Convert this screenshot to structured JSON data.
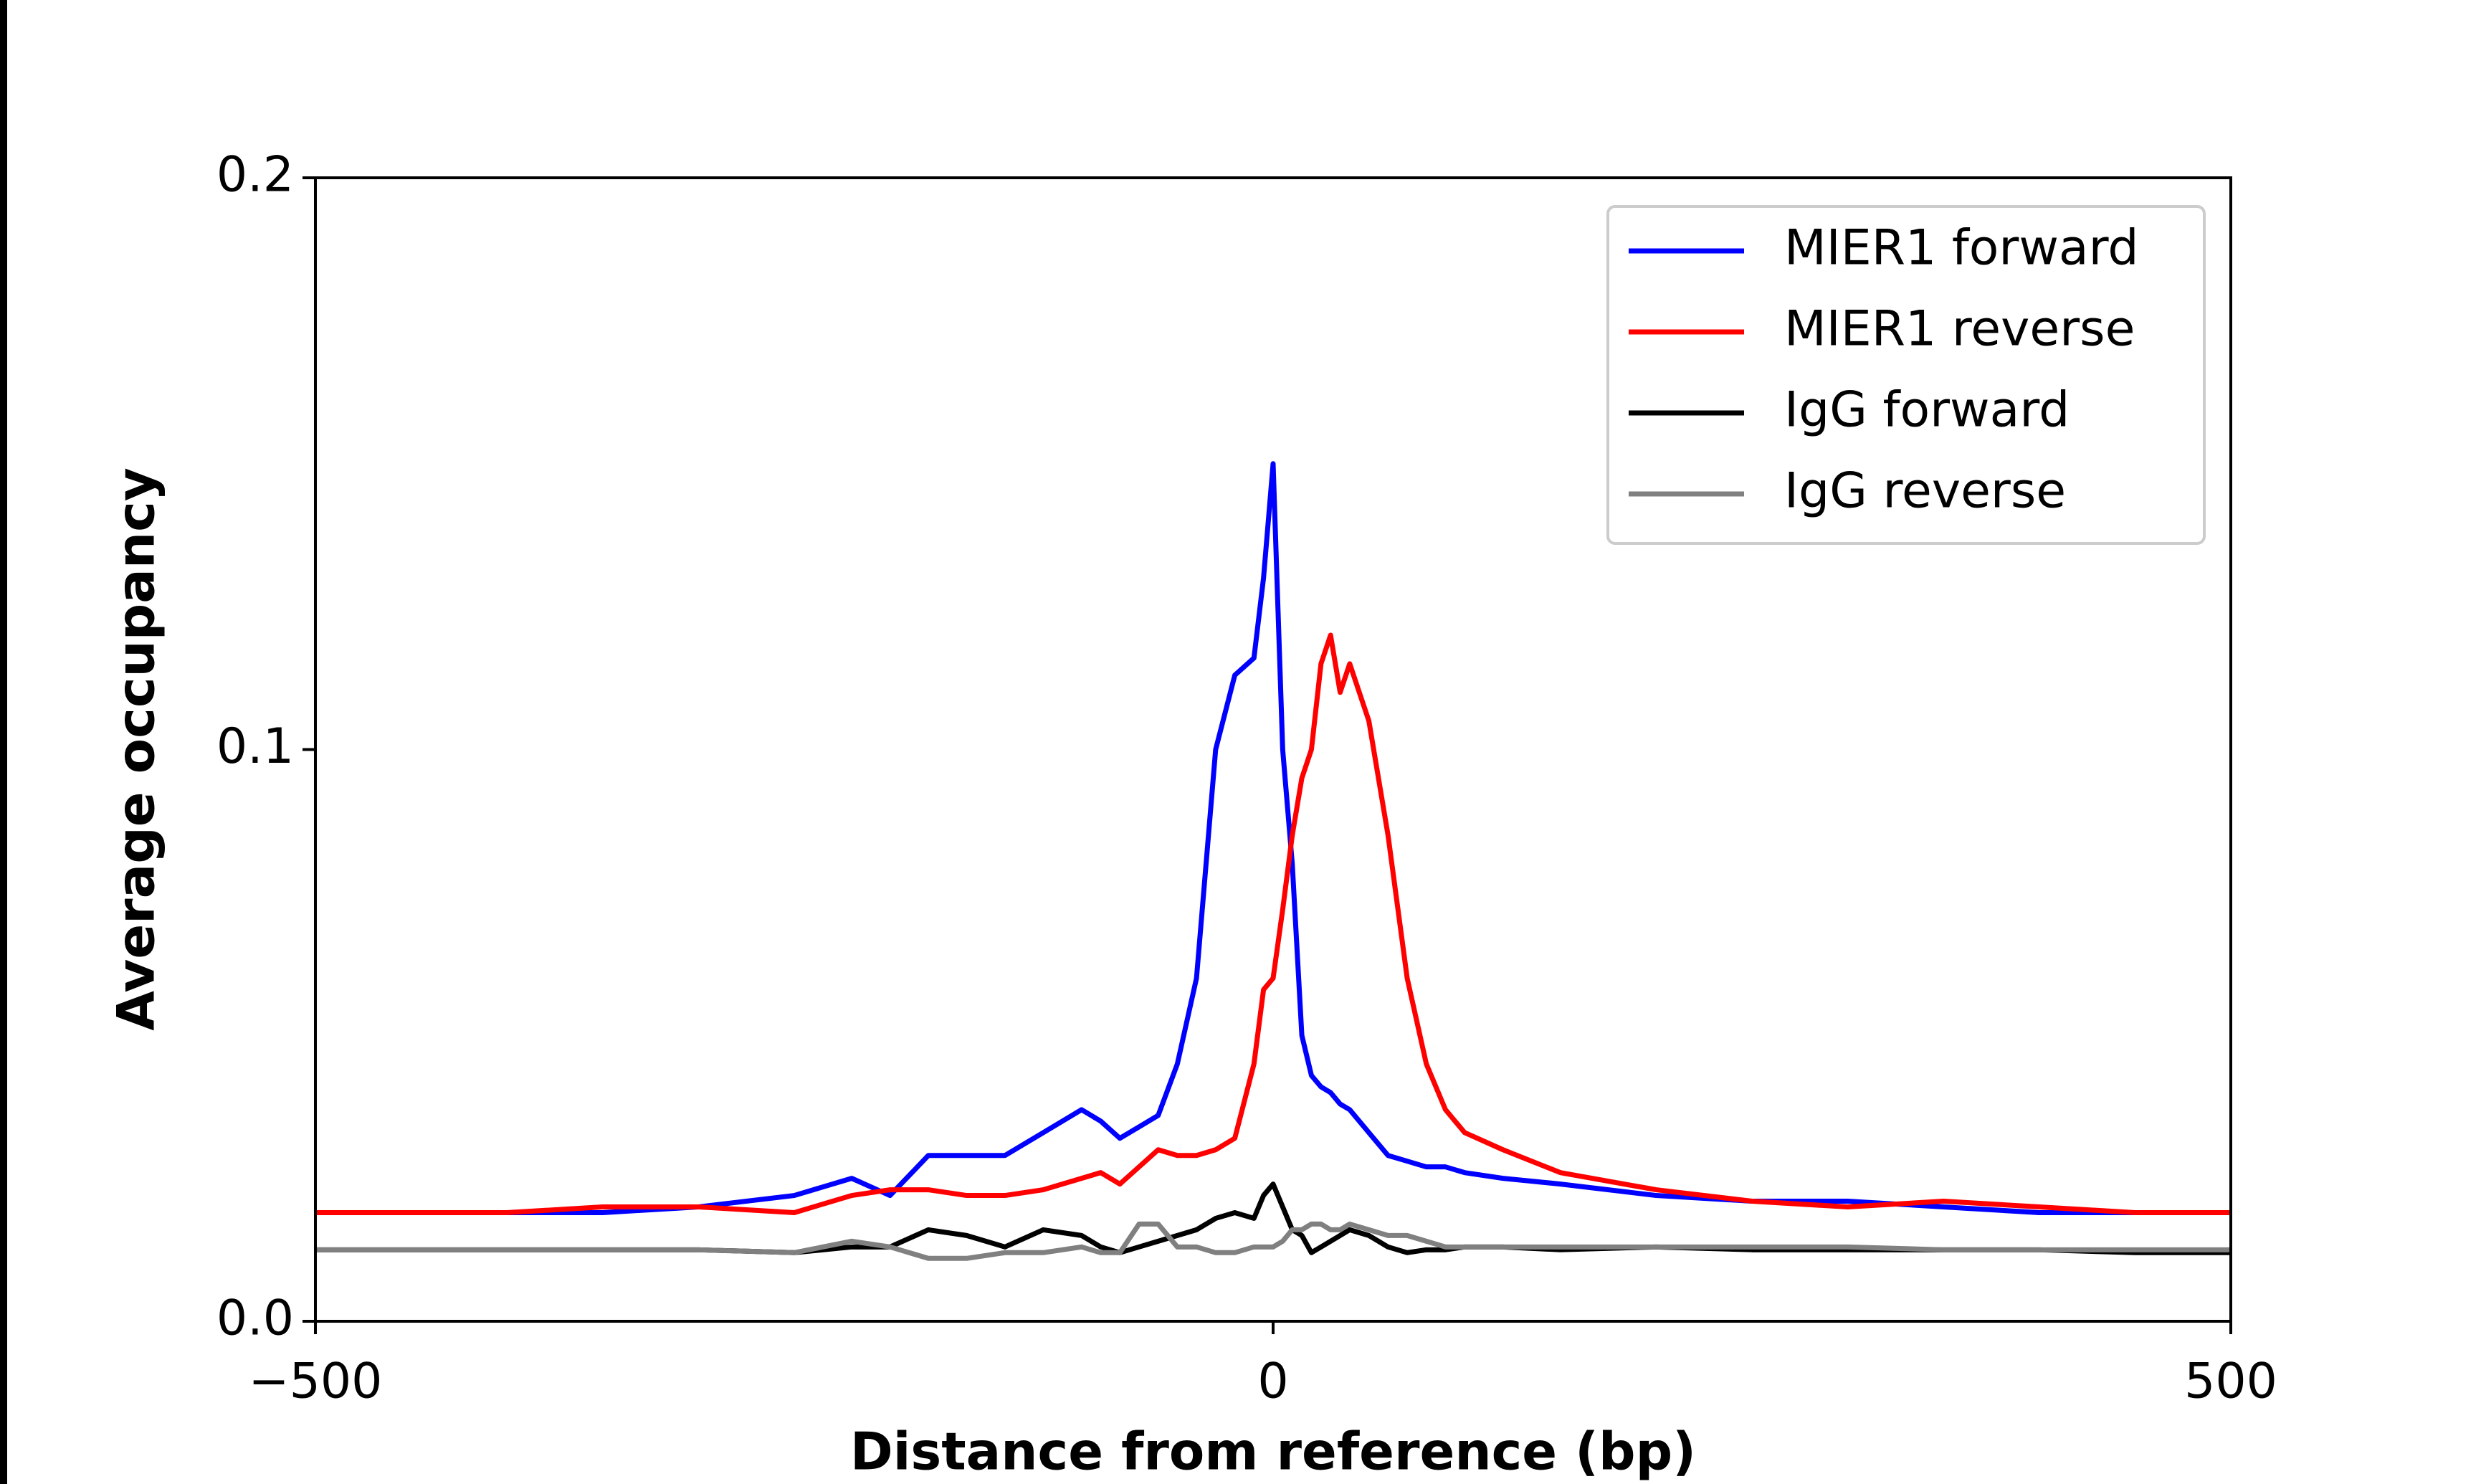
{
  "chart_data": {
    "type": "line",
    "x_label": "Distance from reference (bp)",
    "y_label": "Average occupancy",
    "x": [
      -500,
      -450,
      -400,
      -350,
      -300,
      -250,
      -220,
      -200,
      -180,
      -160,
      -140,
      -120,
      -100,
      -90,
      -80,
      -70,
      -60,
      -50,
      -40,
      -30,
      -20,
      -10,
      -5,
      0,
      5,
      10,
      15,
      20,
      25,
      30,
      35,
      40,
      50,
      60,
      70,
      80,
      90,
      100,
      120,
      150,
      200,
      250,
      300,
      350,
      400,
      450,
      500
    ],
    "series": [
      {
        "name": "MIER1 forward",
        "color": "#0000ff",
        "values": [
          0.019,
          0.019,
          0.019,
          0.019,
          0.02,
          0.022,
          0.025,
          0.022,
          0.029,
          0.029,
          0.029,
          0.033,
          0.037,
          0.035,
          0.032,
          0.034,
          0.036,
          0.045,
          0.06,
          0.1,
          0.113,
          0.116,
          0.13,
          0.15,
          0.1,
          0.08,
          0.05,
          0.043,
          0.041,
          0.04,
          0.038,
          0.037,
          0.033,
          0.029,
          0.028,
          0.027,
          0.027,
          0.026,
          0.025,
          0.024,
          0.022,
          0.021,
          0.021,
          0.02,
          0.019,
          0.019,
          0.019
        ]
      },
      {
        "name": "MIER1 reverse",
        "color": "#ff0000",
        "values": [
          0.019,
          0.019,
          0.019,
          0.02,
          0.02,
          0.019,
          0.022,
          0.023,
          0.023,
          0.022,
          0.022,
          0.023,
          0.025,
          0.026,
          0.024,
          0.027,
          0.03,
          0.029,
          0.029,
          0.03,
          0.032,
          0.045,
          0.058,
          0.06,
          0.072,
          0.085,
          0.095,
          0.1,
          0.115,
          0.12,
          0.11,
          0.115,
          0.105,
          0.085,
          0.06,
          0.045,
          0.037,
          0.033,
          0.03,
          0.026,
          0.023,
          0.021,
          0.02,
          0.021,
          0.02,
          0.019,
          0.019
        ]
      },
      {
        "name": "IgG forward",
        "color": "#000000",
        "values": [
          0.0125,
          0.0125,
          0.0125,
          0.0125,
          0.0125,
          0.012,
          0.013,
          0.013,
          0.016,
          0.015,
          0.013,
          0.016,
          0.015,
          0.013,
          0.012,
          0.013,
          0.014,
          0.015,
          0.016,
          0.018,
          0.019,
          0.018,
          0.022,
          0.024,
          0.02,
          0.016,
          0.015,
          0.012,
          0.013,
          0.014,
          0.015,
          0.016,
          0.015,
          0.013,
          0.012,
          0.0125,
          0.0125,
          0.013,
          0.013,
          0.0125,
          0.013,
          0.0125,
          0.0125,
          0.0125,
          0.0125,
          0.012,
          0.012
        ]
      },
      {
        "name": "IgG reverse",
        "color": "#808080",
        "values": [
          0.0125,
          0.0125,
          0.0125,
          0.0125,
          0.0125,
          0.012,
          0.014,
          0.013,
          0.011,
          0.011,
          0.012,
          0.012,
          0.013,
          0.012,
          0.012,
          0.017,
          0.017,
          0.013,
          0.013,
          0.012,
          0.012,
          0.013,
          0.013,
          0.013,
          0.014,
          0.016,
          0.016,
          0.017,
          0.017,
          0.016,
          0.016,
          0.017,
          0.016,
          0.015,
          0.015,
          0.014,
          0.013,
          0.013,
          0.013,
          0.013,
          0.013,
          0.013,
          0.013,
          0.0125,
          0.0125,
          0.0125,
          0.0125
        ]
      }
    ],
    "xlim": [
      -500,
      500
    ],
    "xticks": [
      {
        "value": -500,
        "label": "−500"
      },
      0,
      500
    ],
    "ylim": [
      0,
      0.2
    ],
    "yticks": [
      {
        "value": 0,
        "label": "0.0"
      },
      0.1,
      0.2
    ],
    "legend": "upper right"
  }
}
